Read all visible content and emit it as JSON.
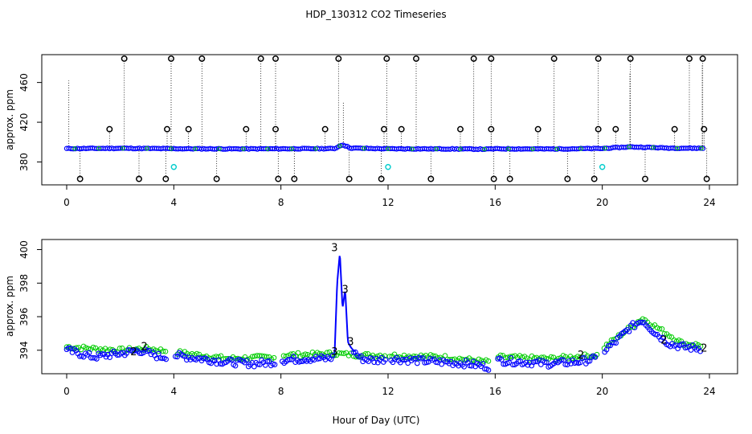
{
  "title": "HDP_130312  CO2 Timeseries",
  "colors": {
    "spike_marker": "#000000",
    "main_series": "#0000ff",
    "secondary_series": "#00cc00",
    "flagged": "#00cccc",
    "axis": "#000000"
  },
  "chart_data": [
    {
      "type": "scatter",
      "panel": "top",
      "ylabel": "approx. ppm",
      "xlim": [
        0,
        24
      ],
      "ylim": [
        357,
        488
      ],
      "x_ticks": [
        "0",
        "4",
        "8",
        "12",
        "16",
        "20",
        "24"
      ],
      "y_ticks": [
        "380",
        "420",
        "460"
      ],
      "series": [
        {
          "role": "baseline",
          "x": [
            0.0,
            2.0,
            4.0,
            6.0,
            8.0,
            10.0,
            10.3,
            10.6,
            12.0,
            14.0,
            15.7,
            16.0,
            18.0,
            20.0,
            21.0,
            21.6,
            22.5,
            24.0
          ],
          "y": [
            393.5,
            393.8,
            393.4,
            393.2,
            393.3,
            393.5,
            397.5,
            394.0,
            393.3,
            393.2,
            392.9,
            393.3,
            393.1,
            393.6,
            395.2,
            394.8,
            394.0,
            393.8
          ]
        },
        {
          "role": "outlier_high",
          "x": [
            2.15,
            3.9,
            5.05,
            7.25,
            7.8,
            10.15,
            11.95,
            13.05,
            15.2,
            15.85,
            18.2,
            19.85,
            21.05,
            23.25,
            23.75
          ],
          "y": [
            484,
            484,
            484,
            484,
            484,
            484,
            484,
            484,
            484,
            484,
            484,
            484,
            484,
            484,
            484
          ]
        },
        {
          "role": "outlier_mid",
          "x": [
            1.6,
            3.75,
            4.55,
            6.7,
            7.8,
            9.65,
            11.85,
            12.5,
            14.7,
            15.85,
            17.6,
            19.85,
            20.5,
            22.7,
            23.8
          ],
          "y": [
            413,
            413,
            413,
            413,
            413,
            413,
            413,
            413,
            413,
            413,
            413,
            413,
            413,
            413,
            413
          ]
        },
        {
          "role": "outlier_low",
          "x": [
            0.5,
            2.7,
            3.7,
            5.6,
            7.9,
            8.5,
            10.55,
            11.75,
            13.6,
            15.95,
            16.55,
            18.7,
            19.7,
            21.6,
            23.9
          ],
          "y": [
            363,
            363,
            363,
            363,
            363,
            363,
            363,
            363,
            363,
            363,
            363,
            363,
            363,
            363,
            363
          ]
        },
        {
          "role": "flagged",
          "x": [
            4.0,
            12.0,
            20.0
          ],
          "y": [
            375,
            375,
            375
          ]
        }
      ]
    },
    {
      "type": "scatter",
      "panel": "bottom",
      "ylabel": "approx. ppm",
      "xlabel": "Hour of Day (UTC)",
      "xlim": [
        0,
        24
      ],
      "ylim": [
        392.6,
        400.6
      ],
      "x_ticks": [
        "0",
        "4",
        "8",
        "12",
        "16",
        "20",
        "24"
      ],
      "y_ticks": [
        "394",
        "396",
        "398",
        "400"
      ],
      "series": [
        {
          "role": "trend",
          "x": [
            0.0,
            1.0,
            2.0,
            2.7,
            3.5,
            4.0,
            5.0,
            6.0,
            7.0,
            7.8,
            8.0,
            9.0,
            9.7,
            10.0,
            10.1,
            10.2,
            10.3,
            10.4,
            10.5,
            10.6,
            10.8,
            11.0,
            11.5,
            12.0,
            13.0,
            14.0,
            15.0,
            15.8,
            16.0,
            17.0,
            18.0,
            19.0,
            19.8,
            20.0,
            20.5,
            21.0,
            21.5,
            22.0,
            22.5,
            23.0,
            23.7
          ],
          "y": [
            394.0,
            393.6,
            393.8,
            394.0,
            393.6,
            393.7,
            393.5,
            393.3,
            393.2,
            393.3,
            393.4,
            393.5,
            393.5,
            393.6,
            398.0,
            399.8,
            396.5,
            397.6,
            394.5,
            394.2,
            393.8,
            393.5,
            393.4,
            393.5,
            393.4,
            393.3,
            393.2,
            393.0,
            393.4,
            393.3,
            393.2,
            393.3,
            393.5,
            393.9,
            394.5,
            395.3,
            395.8,
            395.0,
            394.4,
            394.2,
            394.1
          ]
        },
        {
          "role": "secondary",
          "x": [
            0.0,
            2.0,
            3.0,
            4.0,
            6.0,
            7.8,
            8.0,
            10.0,
            11.0,
            12.0,
            14.0,
            15.8,
            16.0,
            18.0,
            19.8,
            20.0,
            21.5,
            23.0,
            23.7
          ],
          "y": [
            394.2,
            394.0,
            394.1,
            393.9,
            393.5,
            393.6,
            393.7,
            393.8,
            393.7,
            393.7,
            393.6,
            393.3,
            393.6,
            393.5,
            393.7,
            394.1,
            395.9,
            394.4,
            394.3
          ]
        }
      ],
      "annotations": [
        {
          "text": "3",
          "x": 10.0,
          "y": 400.1
        },
        {
          "text": "3",
          "x": 10.4,
          "y": 397.6
        },
        {
          "text": "3",
          "x": 10.6,
          "y": 394.5
        },
        {
          "text": "3",
          "x": 10.0,
          "y": 393.9
        },
        {
          "text": "2",
          "x": 2.5,
          "y": 393.9
        },
        {
          "text": "2",
          "x": 2.9,
          "y": 394.2
        },
        {
          "text": "2",
          "x": 19.2,
          "y": 393.7
        },
        {
          "text": "2",
          "x": 22.3,
          "y": 394.6
        },
        {
          "text": "2",
          "x": 23.8,
          "y": 394.1
        }
      ]
    }
  ]
}
